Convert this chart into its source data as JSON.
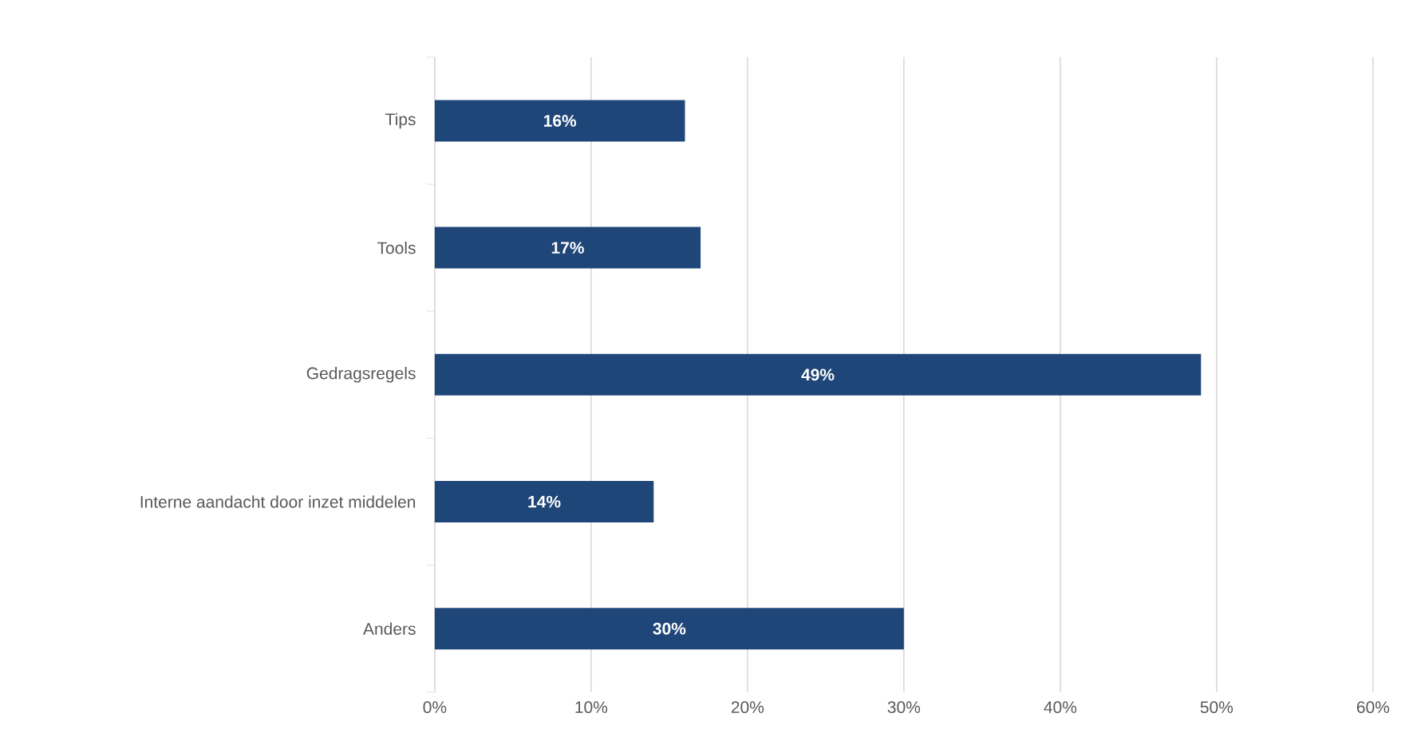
{
  "chart_data": {
    "type": "bar",
    "orientation": "horizontal",
    "categories": [
      "Tips",
      "Tools",
      "Gedragsregels",
      "Interne aandacht door inzet middelen",
      "Anders"
    ],
    "values": [
      16,
      17,
      49,
      14,
      30
    ],
    "value_labels": [
      "16%",
      "17%",
      "49%",
      "14%",
      "30%"
    ],
    "color": "#1f4678",
    "xlim": [
      0,
      60
    ],
    "xticks": [
      {
        "value": 0,
        "label": "0%"
      },
      {
        "value": 10,
        "label": "10%"
      },
      {
        "value": 20,
        "label": "20%"
      },
      {
        "value": 30,
        "label": "30%"
      },
      {
        "value": 40,
        "label": "40%"
      },
      {
        "value": 50,
        "label": "50%"
      },
      {
        "value": 60,
        "label": "60%"
      }
    ],
    "grid": "x"
  }
}
